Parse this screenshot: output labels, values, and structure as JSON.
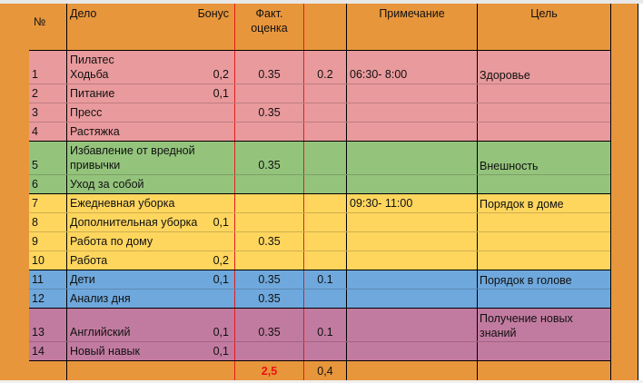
{
  "colors": {
    "header": "#e8963c",
    "health": "#e99a9c",
    "appearance": "#94c47c",
    "home": "#fed65e",
    "mind": "#6fa8dc",
    "knowledge": "#c27ba0",
    "total_red": "#ee1111"
  },
  "header": {
    "num": "№",
    "task": "Дело",
    "bonus": "Бонус",
    "fact": "Факт.\nоценка",
    "extra": "",
    "note": "Примечание",
    "goal": "Цель"
  },
  "rows": [
    {
      "num": "1",
      "task": "Пилатес\nХодьба",
      "bonus": "0,2",
      "fact": "0.35",
      "extra": "0.2",
      "note": "06:30- 8:00"
    },
    {
      "num": "2",
      "task": "Питание",
      "bonus": "0,1",
      "fact": "",
      "extra": "",
      "note": ""
    },
    {
      "num": "3",
      "task": "Пресс",
      "bonus": "",
      "fact": "0.35",
      "extra": "",
      "note": ""
    },
    {
      "num": "4",
      "task": "Растяжка",
      "bonus": "",
      "fact": "",
      "extra": "",
      "note": ""
    },
    {
      "num": "5",
      "task": "Избавление от вредной\nпривычки",
      "bonus": "",
      "fact": "0.35",
      "extra": "",
      "note": ""
    },
    {
      "num": "6",
      "task": "Уход за собой",
      "bonus": "",
      "fact": "",
      "extra": "",
      "note": ""
    },
    {
      "num": "7",
      "task": "Ежедневная уборка",
      "bonus": "",
      "fact": "",
      "extra": "",
      "note": "09:30- 11:00"
    },
    {
      "num": "8",
      "task": "Дополнительная уборка",
      "bonus": "0,1",
      "fact": "",
      "extra": "",
      "note": ""
    },
    {
      "num": "9",
      "task": "Работа по дому",
      "bonus": "",
      "fact": "0.35",
      "extra": "",
      "note": ""
    },
    {
      "num": "10",
      "task": "Работа",
      "bonus": "0,2",
      "fact": "",
      "extra": "",
      "note": ""
    },
    {
      "num": "11",
      "task": "Дети",
      "bonus": "0,1",
      "fact": "0.35",
      "extra": "0.1",
      "note": ""
    },
    {
      "num": "12",
      "task": "Анализ дня",
      "bonus": "",
      "fact": "0.35",
      "extra": "",
      "note": ""
    },
    {
      "num": "13",
      "task": "Английский",
      "bonus": "0,1",
      "fact": "0.35",
      "extra": "0.1",
      "note": ""
    },
    {
      "num": "14",
      "task": "Новый навык",
      "bonus": "0,1",
      "fact": "",
      "extra": "",
      "note": ""
    }
  ],
  "goals": {
    "health": "Здоровье",
    "appearance": "Внешность",
    "home": "Порядок в доме",
    "mind": "Порядок в голове",
    "knowledge": "Получение новых\nзнаний"
  },
  "totals": {
    "fact": "2,5",
    "extra": "0,4"
  }
}
